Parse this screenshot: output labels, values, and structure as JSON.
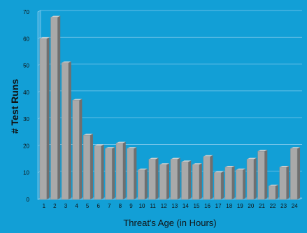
{
  "chart_data": {
    "type": "bar",
    "categories": [
      "1",
      "2",
      "3",
      "4",
      "5",
      "6",
      "7",
      "8",
      "9",
      "10",
      "11",
      "12",
      "13",
      "14",
      "15",
      "16",
      "17",
      "18",
      "19",
      "20",
      "21",
      "22",
      "23",
      "24"
    ],
    "values": [
      60,
      68,
      51,
      37,
      24,
      20,
      19,
      21,
      19,
      11,
      15,
      13,
      15,
      14,
      13,
      16,
      10,
      12,
      11,
      15,
      18,
      5,
      12,
      19
    ],
    "xlabel": "Threat's Age (in Hours)",
    "ylabel": "# Test Runs",
    "ylim": [
      0,
      70
    ],
    "yticks": [
      "0",
      "10",
      "20",
      "30",
      "40",
      "50",
      "60",
      "70"
    ],
    "grid": true,
    "legend": "none",
    "colors": {
      "background": "#129fd6",
      "gridline": "#7fc8ea",
      "bar_face": "#a9a9a9",
      "bar_side": "#6f6f6f",
      "bar_top": "#cfcfcf",
      "axis_wall": "#3aaee0",
      "text": "#111111"
    }
  }
}
